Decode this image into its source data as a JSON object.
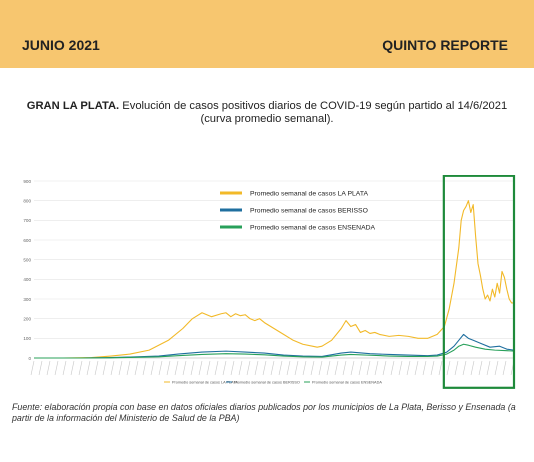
{
  "header": {
    "left": "JUNIO 2021",
    "right": "QUINTO REPORTE",
    "bg_color": "#f7c66f"
  },
  "headline": {
    "bold": "GRAN LA PLATA.",
    "text": " Evolución de casos positivos diarios de COVID-19 según partido al 14/6/2021",
    "line2": "(curva promedio semanal)."
  },
  "source": "Fuente: elaboración propia con base en datos oficiales diarios publicados por los municipios de La Plata, Berisso y Ensenada (a partir de la información del Ministerio de Salud de la PBA)",
  "highlight": {
    "color": "#1e8a3a",
    "x_start": 0.858,
    "x_end": 1.0
  },
  "chart_data": {
    "type": "line",
    "ylim": [
      0,
      900
    ],
    "yticks": [
      0,
      100,
      200,
      300,
      400,
      500,
      600,
      700,
      800,
      900
    ],
    "xlim": [
      0,
      1
    ],
    "grid": true,
    "legend_position": "top-center",
    "series": [
      {
        "name": "Promedio semanal de casos LA PLATA",
        "color": "#f2b928",
        "x": [
          0,
          0.06,
          0.12,
          0.16,
          0.2,
          0.24,
          0.28,
          0.31,
          0.33,
          0.35,
          0.37,
          0.39,
          0.4,
          0.41,
          0.42,
          0.43,
          0.44,
          0.45,
          0.46,
          0.47,
          0.48,
          0.5,
          0.52,
          0.54,
          0.56,
          0.58,
          0.59,
          0.6,
          0.62,
          0.64,
          0.65,
          0.66,
          0.67,
          0.68,
          0.69,
          0.7,
          0.71,
          0.72,
          0.74,
          0.76,
          0.78,
          0.8,
          0.82,
          0.84,
          0.855,
          0.865,
          0.875,
          0.885,
          0.89,
          0.895,
          0.9,
          0.905,
          0.91,
          0.915,
          0.92,
          0.925,
          0.93,
          0.935,
          0.94,
          0.945,
          0.95,
          0.955,
          0.96,
          0.965,
          0.97,
          0.975,
          0.98,
          0.985,
          0.99,
          0.995,
          1.0
        ],
        "values": [
          0,
          0,
          2,
          10,
          20,
          40,
          90,
          150,
          200,
          230,
          210,
          225,
          230,
          210,
          225,
          215,
          220,
          200,
          190,
          200,
          180,
          150,
          120,
          90,
          70,
          60,
          55,
          60,
          90,
          150,
          190,
          160,
          170,
          130,
          140,
          125,
          130,
          120,
          110,
          115,
          110,
          100,
          100,
          120,
          160,
          250,
          380,
          560,
          700,
          750,
          770,
          800,
          740,
          780,
          620,
          480,
          420,
          350,
          300,
          320,
          290,
          350,
          310,
          380,
          330,
          440,
          410,
          350,
          300,
          280,
          280
        ]
      },
      {
        "name": "Promedio semanal de casos BERISSO",
        "color": "#1f6f9f",
        "x": [
          0,
          0.1,
          0.16,
          0.2,
          0.26,
          0.3,
          0.35,
          0.4,
          0.44,
          0.48,
          0.52,
          0.56,
          0.6,
          0.64,
          0.66,
          0.7,
          0.74,
          0.78,
          0.82,
          0.84,
          0.86,
          0.875,
          0.885,
          0.895,
          0.905,
          0.915,
          0.93,
          0.95,
          0.97,
          0.985,
          1.0
        ],
        "values": [
          0,
          0,
          2,
          5,
          10,
          20,
          30,
          35,
          30,
          25,
          15,
          10,
          8,
          25,
          30,
          22,
          18,
          15,
          12,
          15,
          30,
          60,
          90,
          120,
          100,
          90,
          75,
          55,
          60,
          45,
          40
        ]
      },
      {
        "name": "Promedio semanal de casos ENSENADA",
        "color": "#28a05a",
        "x": [
          0,
          0.1,
          0.16,
          0.2,
          0.26,
          0.3,
          0.35,
          0.4,
          0.44,
          0.48,
          0.52,
          0.56,
          0.6,
          0.64,
          0.66,
          0.7,
          0.74,
          0.78,
          0.82,
          0.84,
          0.86,
          0.875,
          0.885,
          0.895,
          0.905,
          0.92,
          0.94,
          0.96,
          0.98,
          1.0
        ],
        "values": [
          0,
          0,
          1,
          3,
          6,
          12,
          18,
          22,
          20,
          16,
          10,
          6,
          5,
          15,
          18,
          14,
          10,
          8,
          8,
          10,
          20,
          40,
          60,
          70,
          65,
          55,
          45,
          40,
          38,
          35
        ]
      }
    ],
    "bottom_legend": [
      "Promedio semanal de casos LA PLATA",
      "Promedio semanal de casos BERISSO",
      "Promedio semanal de casos ENSENADA"
    ]
  }
}
